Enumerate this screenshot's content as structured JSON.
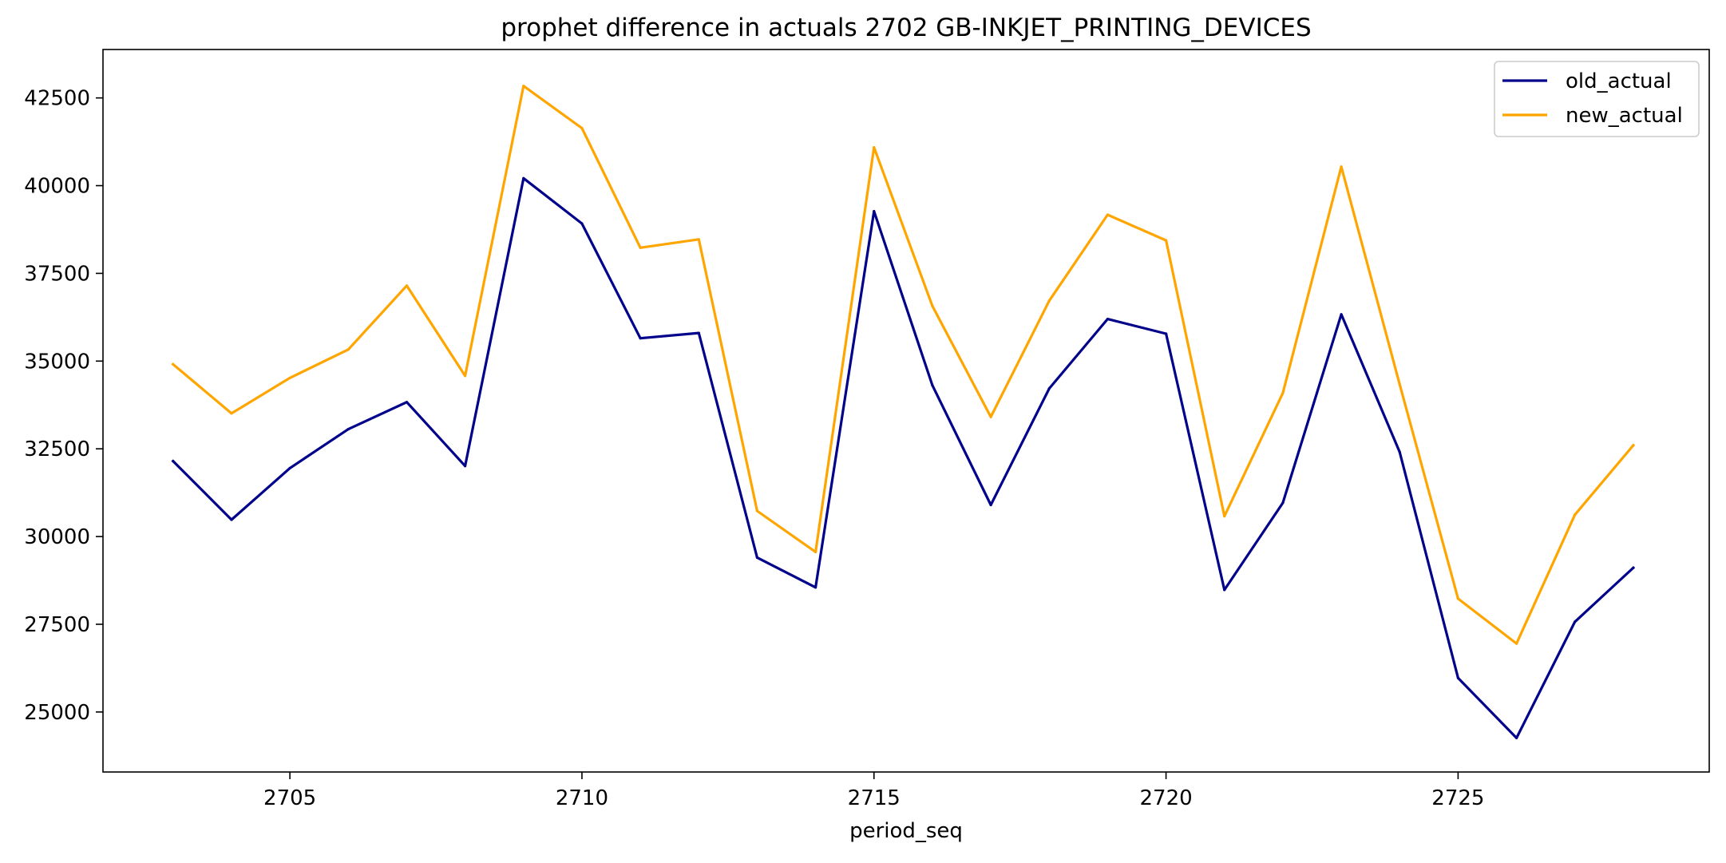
{
  "chart_data": {
    "type": "line",
    "title": "prophet difference in actuals 2702 GB-INKJET_PRINTING_DEVICES",
    "xlabel": "period_seq",
    "ylabel": "",
    "x": [
      2703,
      2704,
      2705,
      2706,
      2707,
      2708,
      2709,
      2710,
      2711,
      2712,
      2713,
      2714,
      2715,
      2716,
      2717,
      2718,
      2719,
      2720,
      2721,
      2722,
      2723,
      2724,
      2725,
      2726,
      2727,
      2728
    ],
    "xlim": [
      2701.8,
      2729.3
    ],
    "ylim": [
      23290,
      43880
    ],
    "xticks": [
      2705,
      2710,
      2715,
      2720,
      2725
    ],
    "yticks": [
      25000,
      27500,
      30000,
      32500,
      35000,
      37500,
      40000,
      42500
    ],
    "grid": false,
    "legend_position": "top-right",
    "series": [
      {
        "name": "old_actual",
        "color": "#00008b",
        "values": [
          32150,
          30480,
          31950,
          33060,
          33830,
          32010,
          40210,
          38920,
          35650,
          35800,
          29400,
          28550,
          39270,
          34310,
          30900,
          34220,
          36200,
          35780,
          28480,
          30960,
          36330,
          32410,
          25970,
          24260,
          27570,
          29110
        ]
      },
      {
        "name": "new_actual",
        "color": "#ffa500",
        "values": [
          34910,
          33510,
          34520,
          35330,
          37150,
          34580,
          42840,
          41640,
          38230,
          38470,
          30730,
          29560,
          41090,
          36570,
          33410,
          36720,
          39170,
          38440,
          30580,
          34090,
          40540,
          34340,
          28230,
          26950,
          30620,
          32600
        ]
      }
    ]
  }
}
